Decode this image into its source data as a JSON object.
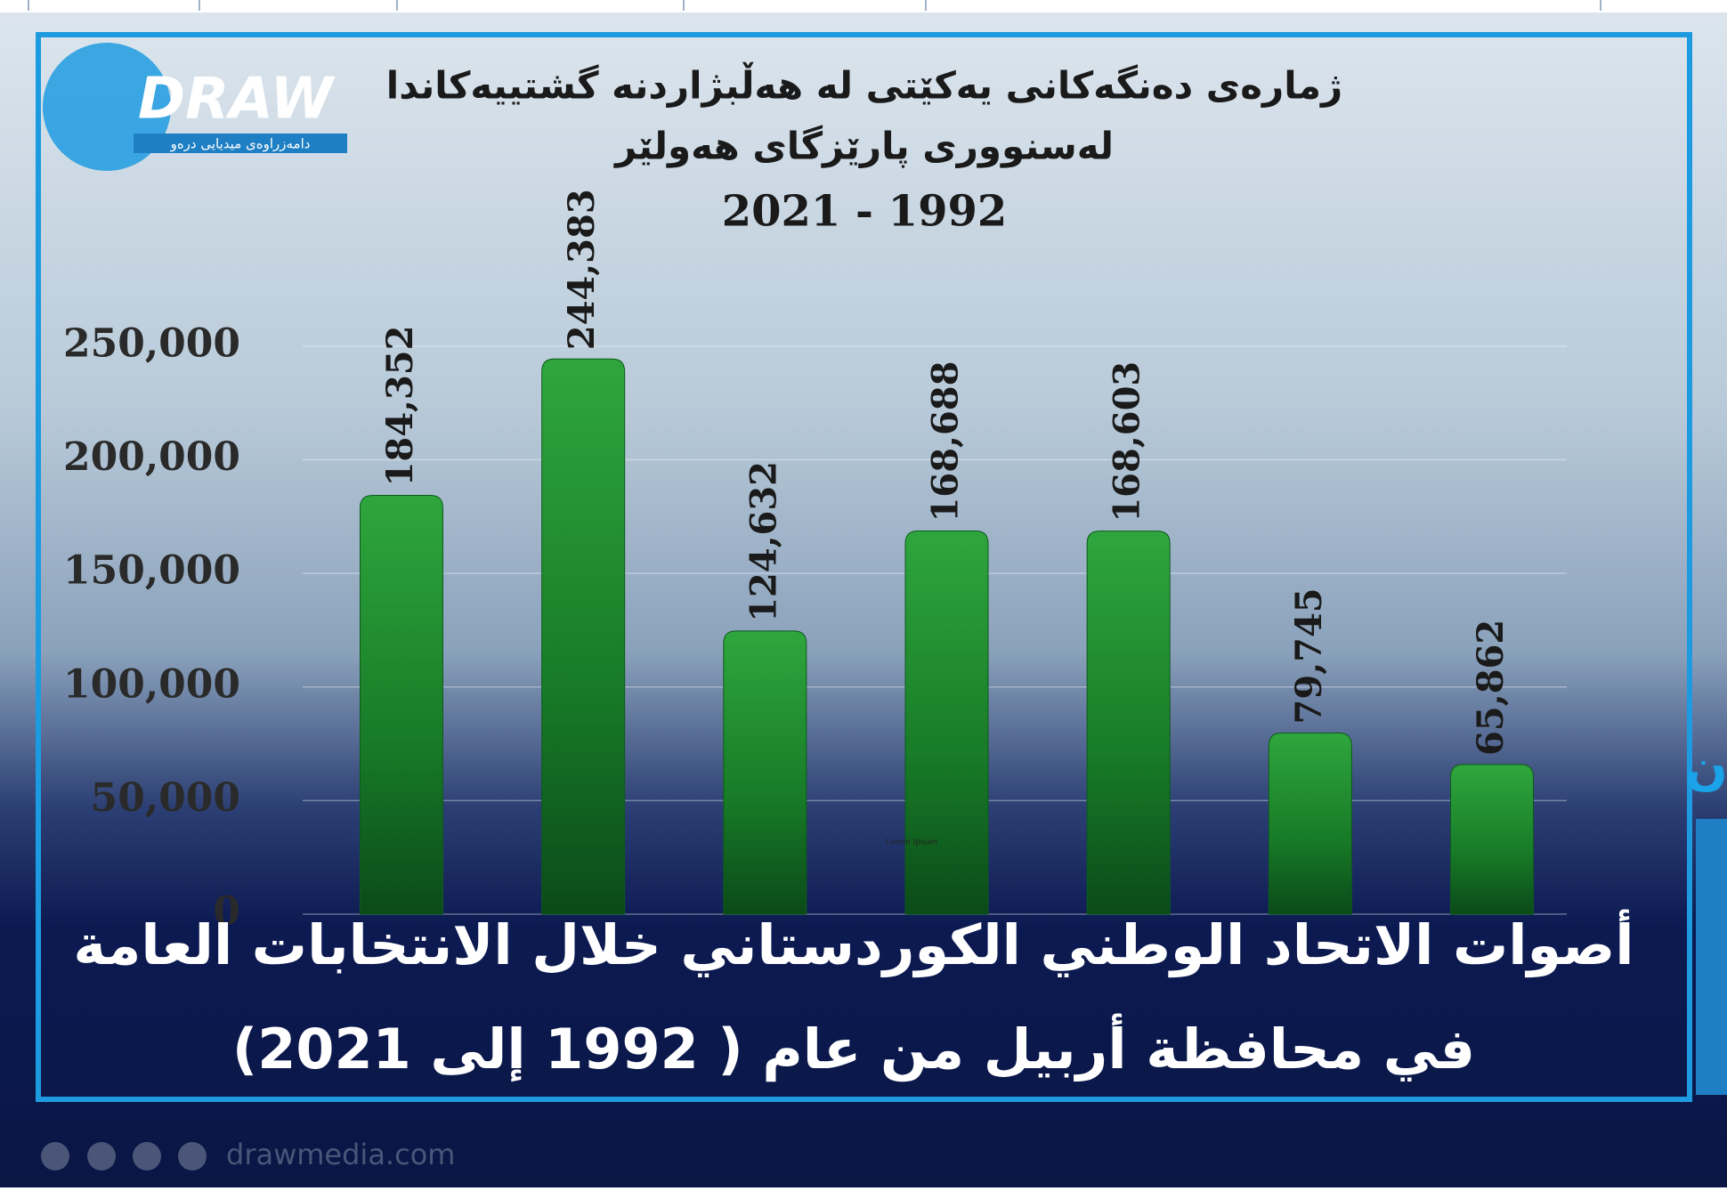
{
  "branding": {
    "logo": "DRAW",
    "logo_sub": "دامەزراوەی میدیایی درەو"
  },
  "chart_data": {
    "type": "bar",
    "title": "ژمارەی دەنگەکانی یەکێتی لە هەڵبژاردنە گشتییەکاندا",
    "subtitle": "لەسنووری پارێزگای هەولێر",
    "period": "2021 - 1992",
    "values": [
      184352,
      244383,
      124632,
      168688,
      168603,
      79745,
      65862
    ],
    "value_labels": [
      "184,352",
      "244,383",
      "124,632",
      "168,688",
      "168,603",
      "79,745",
      "65,862"
    ],
    "color": "#1f8a2c",
    "ylim": [
      0,
      277000
    ],
    "yticks": [
      0,
      {
        "value": 50000,
        "label": "50,000"
      },
      {
        "value": 100000,
        "label": "100,000"
      },
      {
        "value": 150000,
        "label": "150,000"
      },
      {
        "value": 200000,
        "label": "200,000"
      },
      {
        "value": 250000,
        "label": "250,000"
      }
    ],
    "grid": true,
    "note": "Lorem Ipsum"
  },
  "region_label": "إقليم  كوردستان",
  "headline": [
    "أصوات الاتحاد الوطني الكوردستاني خلال الانتخابات العامة",
    "في محافظة أربيل من عام ( 1992 إلى 2021)"
  ],
  "footer": {
    "site": "drawmedia.com"
  }
}
